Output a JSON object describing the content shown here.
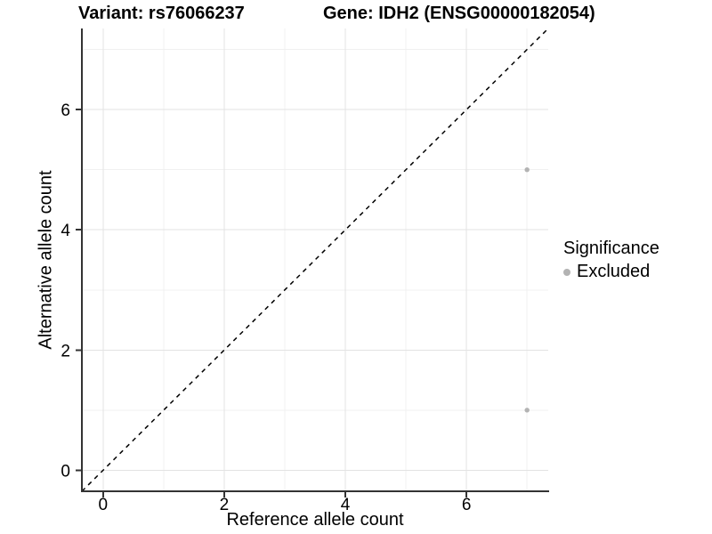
{
  "header": {
    "variant_title": "Variant: rs76066237",
    "gene_title": "Gene: IDH2 (ENSG00000182054)"
  },
  "chart_data": {
    "type": "scatter",
    "title_left": "Variant: rs76066237",
    "title_right": "Gene: IDH2 (ENSG00000182054)",
    "xlabel": "Reference allele count",
    "ylabel": "Alternative allele count",
    "xlim": [
      -0.35,
      7.35
    ],
    "ylim": [
      -0.35,
      7.35
    ],
    "x_ticks": [
      0,
      2,
      4,
      6
    ],
    "y_ticks": [
      0,
      2,
      4,
      6
    ],
    "x_minor_gridlines": [
      1,
      3,
      5,
      7
    ],
    "y_minor_gridlines": [
      1,
      3,
      5,
      7
    ],
    "grid": "major+minor",
    "series": [
      {
        "name": "Excluded",
        "color": "#b3b3b3",
        "points": [
          {
            "x": 7,
            "y": 5
          },
          {
            "x": 7,
            "y": 1
          }
        ]
      }
    ],
    "reference_line": {
      "kind": "identity",
      "equation": "y = x",
      "style": "dashed",
      "color": "#000000"
    },
    "legend": {
      "title": "Significance",
      "position": "right",
      "items": [
        {
          "label": "Excluded",
          "color": "#b3b3b3"
        }
      ]
    },
    "colors": {
      "background": "#ffffff",
      "grid_major": "#e3e3e3",
      "grid_minor": "#f0f0f0",
      "axis_line": "#333333",
      "tick_mark": "#333333",
      "tick_text": "#000000"
    }
  }
}
